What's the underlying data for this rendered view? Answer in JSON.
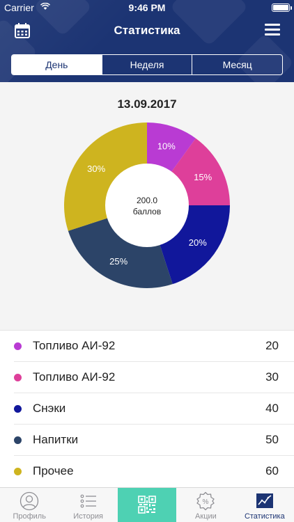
{
  "status_bar": {
    "carrier": "Carrier",
    "time": "9:46 PM"
  },
  "nav": {
    "title": "Статистика",
    "left_icon": "calendar-icon",
    "right_icon": "menu-icon"
  },
  "segments": [
    {
      "label": "День",
      "selected": true
    },
    {
      "label": "Неделя",
      "selected": false
    },
    {
      "label": "Месяц",
      "selected": false
    }
  ],
  "chart_data": {
    "type": "pie",
    "title": "13.09.2017",
    "center_value": "200.0",
    "center_unit": "баллов",
    "slices": [
      {
        "label": "10%",
        "value": 10,
        "color": "#b93bd3"
      },
      {
        "label": "15%",
        "value": 15,
        "color": "#de3f9a"
      },
      {
        "label": "20%",
        "value": 20,
        "color": "#11179b"
      },
      {
        "label": "25%",
        "value": 25,
        "color": "#2c4468"
      },
      {
        "label": "30%",
        "value": 30,
        "color": "#ceb41f"
      }
    ]
  },
  "list": [
    {
      "label": "Топливо АИ-92",
      "value": "20",
      "color": "#b93bd3"
    },
    {
      "label": "Топливо АИ-92",
      "value": "30",
      "color": "#de3f9a"
    },
    {
      "label": "Снэки",
      "value": "40",
      "color": "#11179b"
    },
    {
      "label": "Напитки",
      "value": "50",
      "color": "#2c4468"
    },
    {
      "label": "Прочее",
      "value": "60",
      "color": "#ceb41f"
    }
  ],
  "tabs": [
    {
      "label": "Профиль",
      "icon": "profile-icon"
    },
    {
      "label": "История",
      "icon": "list-icon"
    },
    {
      "label": "",
      "icon": "qr-code-icon"
    },
    {
      "label": "Акции",
      "icon": "percent-badge-icon"
    },
    {
      "label": "Статистика",
      "icon": "chart-icon"
    }
  ]
}
